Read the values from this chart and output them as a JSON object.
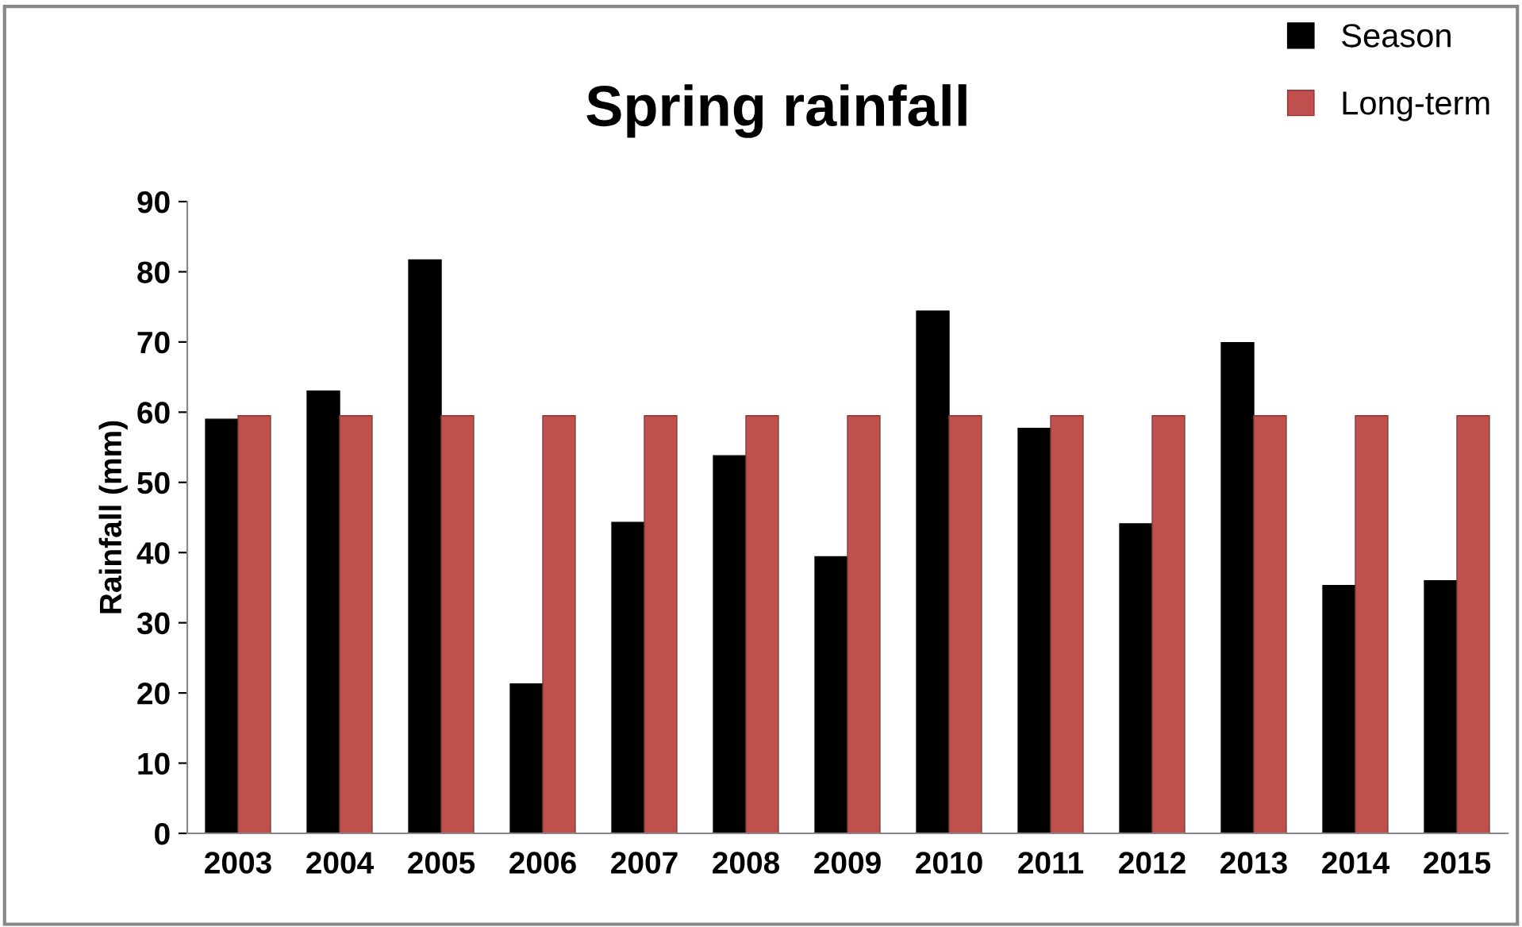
{
  "chart_data": {
    "type": "bar",
    "title": "Spring rainfall",
    "ylabel": "Rainfall (mm)",
    "categories": [
      "2003",
      "2004",
      "2005",
      "2006",
      "2007",
      "2008",
      "2009",
      "2010",
      "2011",
      "2012",
      "2013",
      "2014",
      "2015"
    ],
    "series": [
      {
        "name": "Season",
        "color": "#000000",
        "values": [
          59,
          63,
          81.7,
          21.3,
          44.3,
          53.8,
          39.4,
          74.4,
          57.7,
          44.1,
          69.9,
          35.3,
          36
        ]
      },
      {
        "name": "Long-term",
        "color": "#c0504d",
        "values": [
          59.5,
          59.5,
          59.5,
          59.5,
          59.5,
          59.5,
          59.5,
          59.5,
          59.5,
          59.5,
          59.5,
          59.5,
          59.5
        ]
      }
    ],
    "ylim": [
      0,
      90
    ],
    "yticks": [
      0,
      10,
      20,
      30,
      40,
      50,
      60,
      70,
      80,
      90
    ],
    "grid": false,
    "legend": "top right"
  }
}
